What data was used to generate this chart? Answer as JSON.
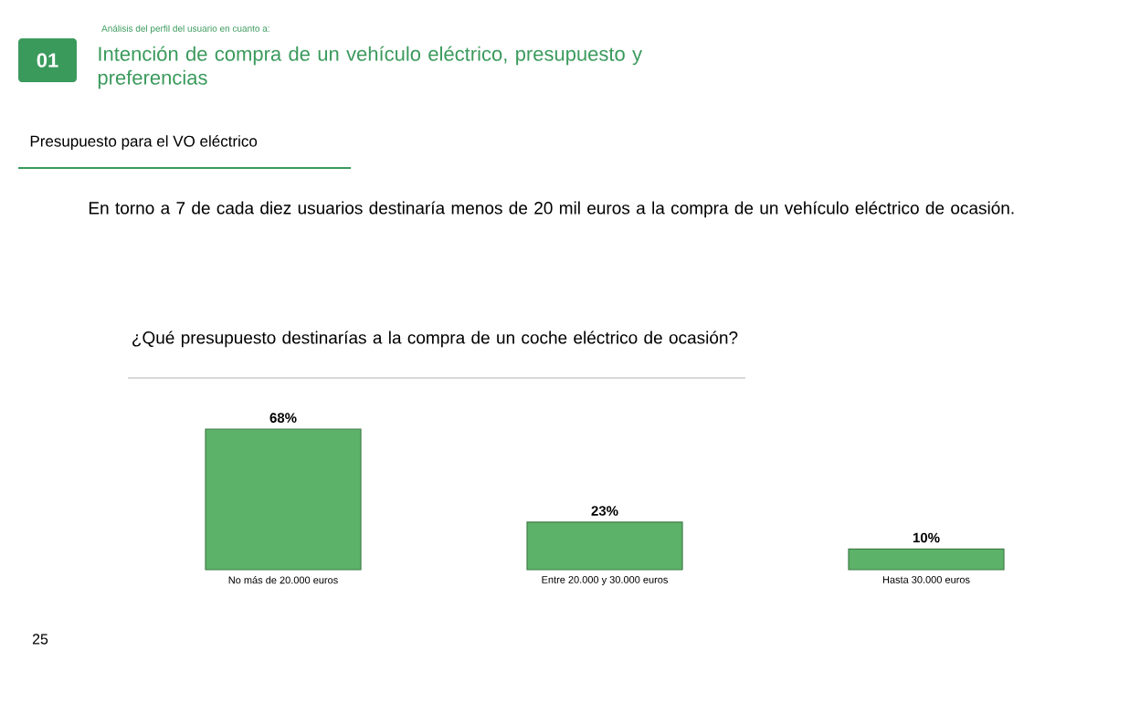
{
  "chart_data": {
    "type": "bar",
    "title": "¿Qué presupuesto destinarías a la compra de un coche eléctrico de ocasión?",
    "categories": [
      "No más de 20.000 euros",
      "Entre 20.000 y 30.000 euros",
      "Hasta 30.000 euros"
    ],
    "values": [
      68,
      23,
      10
    ],
    "value_labels": [
      "68%",
      "23%",
      "10%"
    ],
    "color": "#5cb268",
    "annotations": [
      "01",
      "Análisis del perfil del usuario en cuanto a:",
      "Intención de compra de un vehículo eléctrico, presupuesto y preferencias",
      "Presupuesto para el VO eléctrico",
      "En torno a 7 de cada diez usuarios destinaría menos de 20 mil euros a la compra de un vehículo eléctrico de ocasión.",
      "25"
    ]
  }
}
